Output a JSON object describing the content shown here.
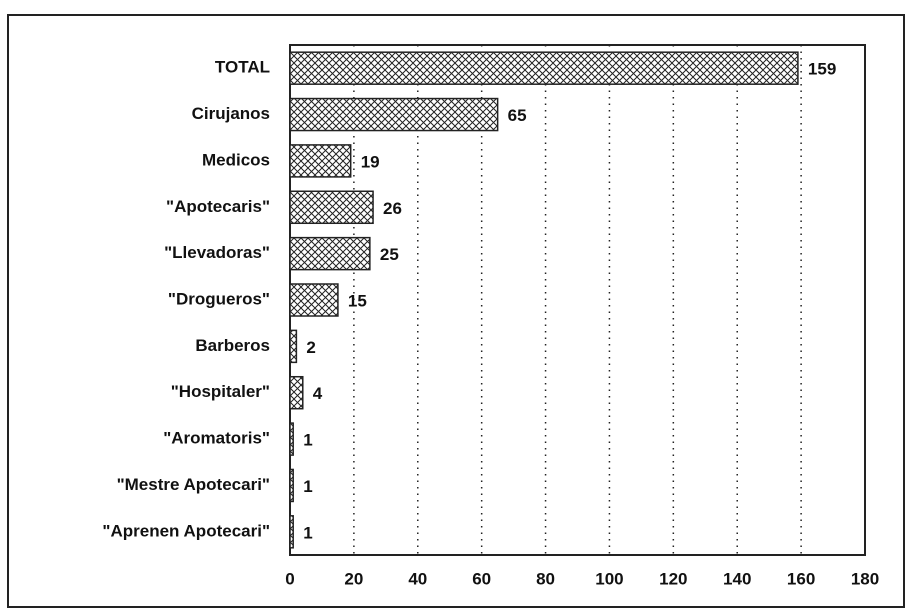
{
  "chart_data": {
    "type": "barh",
    "categories": [
      "TOTAL",
      "Cirujanos",
      "Medicos",
      "\"Apotecaris\"",
      "\"Llevadoras\"",
      "\"Drogueros\"",
      "Barberos",
      "\"Hospitaler\"",
      "\"Aromatoris\"",
      "\"Mestre Apotecari\"",
      "\"Aprenen Apotecari\""
    ],
    "values": [
      159,
      65,
      19,
      26,
      25,
      15,
      2,
      4,
      1,
      1,
      1
    ],
    "xlim": [
      0,
      180
    ],
    "xticks": [
      0,
      20,
      40,
      60,
      80,
      100,
      120,
      140,
      160,
      180
    ],
    "grid": true,
    "color": "#222"
  }
}
